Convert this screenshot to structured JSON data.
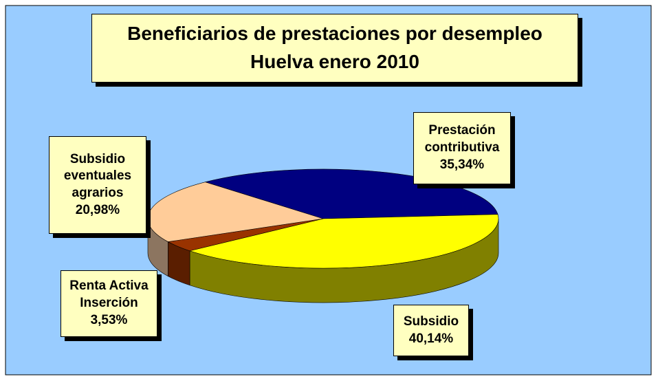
{
  "chart_data": {
    "type": "pie",
    "title": "Beneficiarios de prestaciones por  desempleo",
    "subtitle": "Huelva enero 2010",
    "categories": [
      "Prestación\ncontributiva",
      "Subsidio",
      "Renta Activa\nInserción",
      "Subsidio\neventuales\nagrarios"
    ],
    "values": [
      35.34,
      40.14,
      3.53,
      20.98
    ],
    "value_labels": [
      "35,34%",
      "40,14%",
      "3,53%",
      "20,98%"
    ],
    "colors": [
      "#000080",
      "#ffff00",
      "#993300",
      "#ffcc99"
    ],
    "side_colors": [
      "#000040",
      "#808000",
      "#5a1e00",
      "#8c7560"
    ]
  }
}
